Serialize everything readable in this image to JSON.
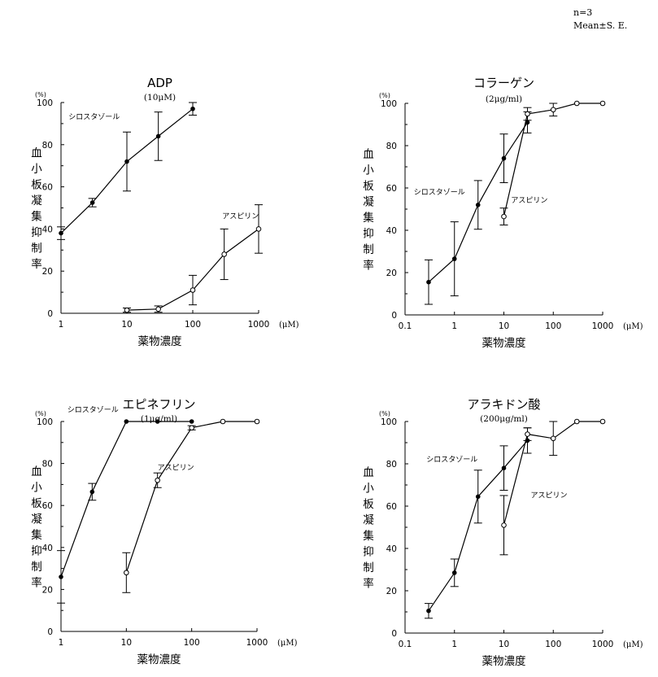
{
  "stats": {
    "n": "n=3",
    "mean": "Mean±S. E."
  },
  "colors": {
    "ink": "#000000",
    "background": "#ffffff"
  },
  "chart_data": [
    {
      "type": "line",
      "title": "ADP",
      "subtitle": "(10μM)",
      "xlabel": "薬物濃度",
      "ylabel": "血小板凝集抑制率",
      "y_unit": "(%)",
      "x_unit": "(μM)",
      "x_scale": "log",
      "xlim": [
        1,
        1000
      ],
      "ylim": [
        0,
        100
      ],
      "xticks": [
        1,
        10,
        100,
        1000
      ],
      "xtick_labels": [
        "1",
        "10",
        "100",
        "1000"
      ],
      "yticks": [
        0,
        20,
        40,
        60,
        80,
        100
      ],
      "series": [
        {
          "name": "シロスタゾール",
          "marker": "filled",
          "label_anchor": [
            1.3,
            92
          ],
          "x": [
            1,
            3,
            10,
            30,
            100
          ],
          "y": [
            38,
            52.5,
            72,
            84,
            97
          ],
          "err": [
            3,
            2,
            14,
            11.5,
            3
          ]
        },
        {
          "name": "アスピリン",
          "marker": "open",
          "label_anchor": [
            280,
            45
          ],
          "x": [
            10,
            30,
            100,
            300,
            1000
          ],
          "y": [
            1.5,
            2,
            11,
            28,
            40
          ],
          "err": [
            1,
            1.5,
            7,
            12,
            11.5
          ]
        }
      ]
    },
    {
      "type": "line",
      "title": "コラーゲン",
      "subtitle": "(2μg/ml)",
      "xlabel": "薬物濃度",
      "ylabel": "血小板凝集抑制率",
      "y_unit": "(%)",
      "x_unit": "(μM)",
      "x_scale": "log",
      "xlim": [
        0.1,
        1000
      ],
      "ylim": [
        0,
        100
      ],
      "xticks": [
        0.1,
        1,
        10,
        100,
        1000
      ],
      "xtick_labels": [
        "0.1",
        "1",
        "10",
        "100",
        "1000"
      ],
      "yticks": [
        0,
        20,
        40,
        60,
        80,
        100
      ],
      "series": [
        {
          "name": "シロスタゾール",
          "marker": "filled",
          "label_anchor": [
            0.15,
            57
          ],
          "x": [
            0.3,
            1,
            3,
            10,
            30
          ],
          "y": [
            15.5,
            26.5,
            52,
            74,
            91
          ],
          "err": [
            10.5,
            17.5,
            11.5,
            11.5,
            5
          ]
        },
        {
          "name": "アスピリン",
          "marker": "open",
          "label_anchor": [
            14,
            53
          ],
          "x": [
            10,
            30,
            100,
            300,
            1000
          ],
          "y": [
            46.5,
            95,
            97,
            100,
            100
          ],
          "err": [
            4,
            3,
            3,
            0,
            0
          ]
        }
      ]
    },
    {
      "type": "line",
      "title": "エピネフリン",
      "subtitle": "(1μg/ml)",
      "xlabel": "薬物濃度",
      "ylabel": "血小板凝集抑制率",
      "y_unit": "(%)",
      "x_unit": "(μM)",
      "x_scale": "log",
      "xlim": [
        1,
        1000
      ],
      "ylim": [
        0,
        100
      ],
      "xticks": [
        1,
        10,
        100,
        1000
      ],
      "xtick_labels": [
        "1",
        "10",
        "100",
        "1000"
      ],
      "yticks": [
        0,
        20,
        40,
        60,
        80,
        100
      ],
      "series": [
        {
          "name": "シロスタゾール",
          "marker": "filled",
          "label_anchor": [
            1.25,
            104.5
          ],
          "x": [
            1,
            3,
            10,
            30,
            100
          ],
          "y": [
            26,
            66.5,
            100,
            100,
            100
          ],
          "err": [
            12.5,
            4,
            0,
            0,
            0
          ]
        },
        {
          "name": "アスピリン",
          "marker": "open",
          "label_anchor": [
            30,
            77
          ],
          "x": [
            10,
            30,
            100,
            300,
            1000
          ],
          "y": [
            28,
            72,
            97,
            100,
            100
          ],
          "err": [
            9.5,
            3.5,
            1,
            0,
            0
          ]
        }
      ]
    },
    {
      "type": "line",
      "title": "アラキドン酸",
      "subtitle": "(200μg/ml)",
      "xlabel": "薬物濃度",
      "ylabel": "血小板凝集抑制率",
      "y_unit": "(%)",
      "x_unit": "(μM)",
      "x_scale": "log",
      "xlim": [
        0.1,
        1000
      ],
      "ylim": [
        0,
        100
      ],
      "xticks": [
        0.1,
        1,
        10,
        100,
        1000
      ],
      "xtick_labels": [
        "0.1",
        "1",
        "10",
        "100",
        "1000"
      ],
      "yticks": [
        0,
        20,
        40,
        60,
        80,
        100
      ],
      "series": [
        {
          "name": "シロスタゾール",
          "marker": "filled",
          "label_anchor": [
            0.27,
            81
          ],
          "x": [
            0.3,
            1,
            3,
            10,
            30
          ],
          "y": [
            10.5,
            28.5,
            64.5,
            78,
            91
          ],
          "err": [
            3.5,
            6.5,
            12.5,
            10.5,
            6
          ]
        },
        {
          "name": "アスピリン",
          "marker": "open",
          "label_anchor": [
            35,
            64
          ],
          "x": [
            10,
            30,
            100,
            300,
            1000
          ],
          "y": [
            51,
            94,
            92,
            100,
            100
          ],
          "err": [
            14,
            3,
            8,
            0,
            0
          ]
        }
      ]
    }
  ]
}
